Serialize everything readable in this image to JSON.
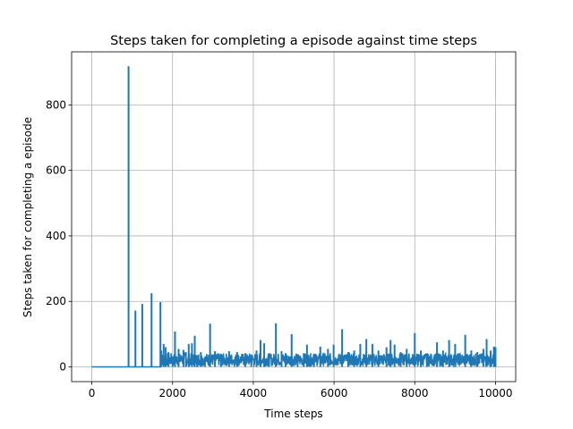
{
  "chart_data": {
    "type": "line",
    "title": "Steps taken for completing a episode against time steps",
    "xlabel": "Time steps",
    "ylabel": "Steps taken for completing a episode",
    "xlim": [
      -500,
      10500
    ],
    "ylim": [
      -45,
      962
    ],
    "xticks": [
      0,
      2000,
      4000,
      6000,
      8000,
      10000
    ],
    "yticks": [
      0,
      200,
      400,
      600,
      800
    ],
    "grid": true,
    "legend": "none",
    "series": [
      {
        "color": "#1f77b4",
        "spikes": [
          [
            910,
            918
          ],
          [
            1080,
            172
          ],
          [
            1250,
            192
          ],
          [
            1480,
            225
          ],
          [
            1700,
            198
          ],
          [
            1720,
            50
          ],
          [
            1780,
            70
          ],
          [
            1830,
            60
          ],
          [
            1900,
            45
          ],
          [
            2000,
            30
          ],
          [
            2060,
            108
          ],
          [
            2150,
            55
          ],
          [
            2270,
            52
          ],
          [
            2330,
            45
          ],
          [
            2400,
            70
          ],
          [
            2480,
            72
          ],
          [
            2550,
            95
          ],
          [
            2620,
            35
          ],
          [
            2700,
            45
          ],
          [
            2800,
            30
          ],
          [
            2930,
            132
          ],
          [
            3050,
            48
          ],
          [
            3200,
            40
          ],
          [
            3400,
            48
          ],
          [
            3600,
            45
          ],
          [
            3800,
            42
          ],
          [
            3950,
            38
          ],
          [
            4080,
            50
          ],
          [
            4180,
            82
          ],
          [
            4270,
            72
          ],
          [
            4380,
            40
          ],
          [
            4560,
            133
          ],
          [
            4700,
            48
          ],
          [
            4800,
            42
          ],
          [
            4950,
            100
          ],
          [
            5100,
            38
          ],
          [
            5250,
            42
          ],
          [
            5330,
            68
          ],
          [
            5500,
            40
          ],
          [
            5660,
            62
          ],
          [
            5850,
            55
          ],
          [
            5990,
            68
          ],
          [
            6200,
            115
          ],
          [
            6350,
            45
          ],
          [
            6500,
            50
          ],
          [
            6650,
            70
          ],
          [
            6800,
            85
          ],
          [
            6950,
            70
          ],
          [
            7100,
            50
          ],
          [
            7300,
            60
          ],
          [
            7400,
            82
          ],
          [
            7500,
            68
          ],
          [
            7650,
            45
          ],
          [
            7800,
            55
          ],
          [
            8000,
            103
          ],
          [
            8150,
            50
          ],
          [
            8300,
            40
          ],
          [
            8550,
            75
          ],
          [
            8700,
            50
          ],
          [
            8850,
            82
          ],
          [
            9000,
            70
          ],
          [
            9250,
            98
          ],
          [
            9400,
            50
          ],
          [
            9550,
            45
          ],
          [
            9700,
            55
          ],
          [
            9780,
            85
          ],
          [
            9880,
            50
          ],
          [
            9960,
            62
          ],
          [
            10000,
            60
          ]
        ],
        "baseline": [
          {
            "from": 0,
            "to": 910,
            "value": 0
          },
          {
            "from": 910,
            "to": 1700,
            "value": 0
          },
          {
            "from": 1700,
            "to": 10000,
            "range": [
              2,
              42
            ]
          }
        ]
      }
    ]
  }
}
